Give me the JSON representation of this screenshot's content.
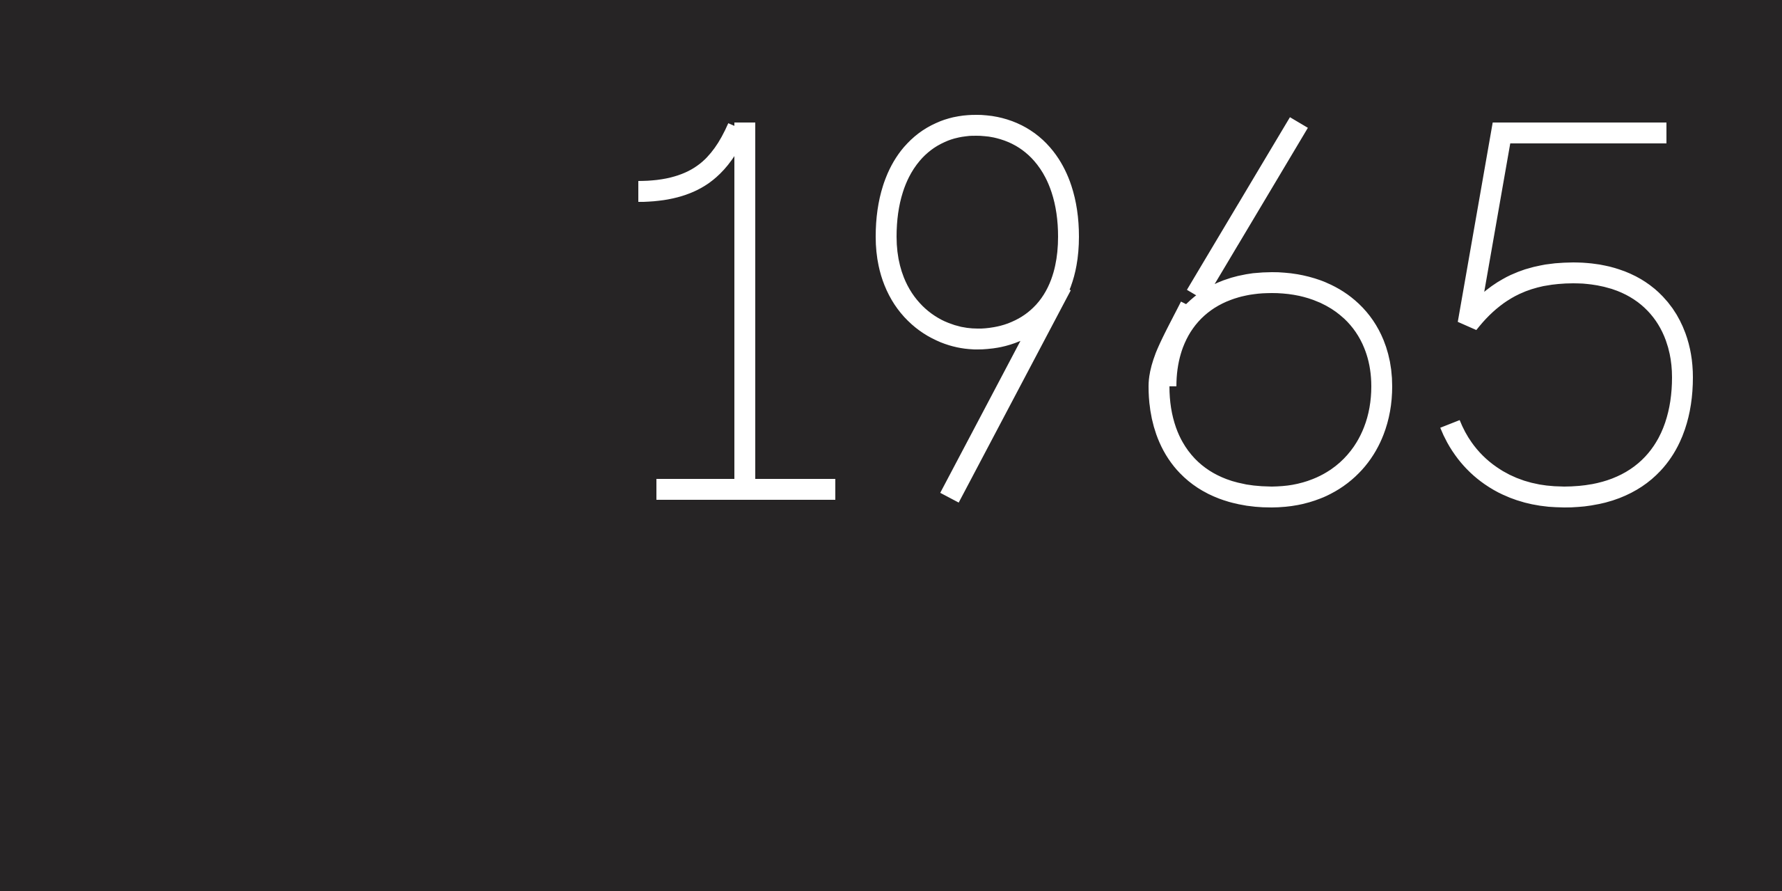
{
  "background_color": "#262425",
  "text_color": "#ffffff",
  "year": "1965"
}
